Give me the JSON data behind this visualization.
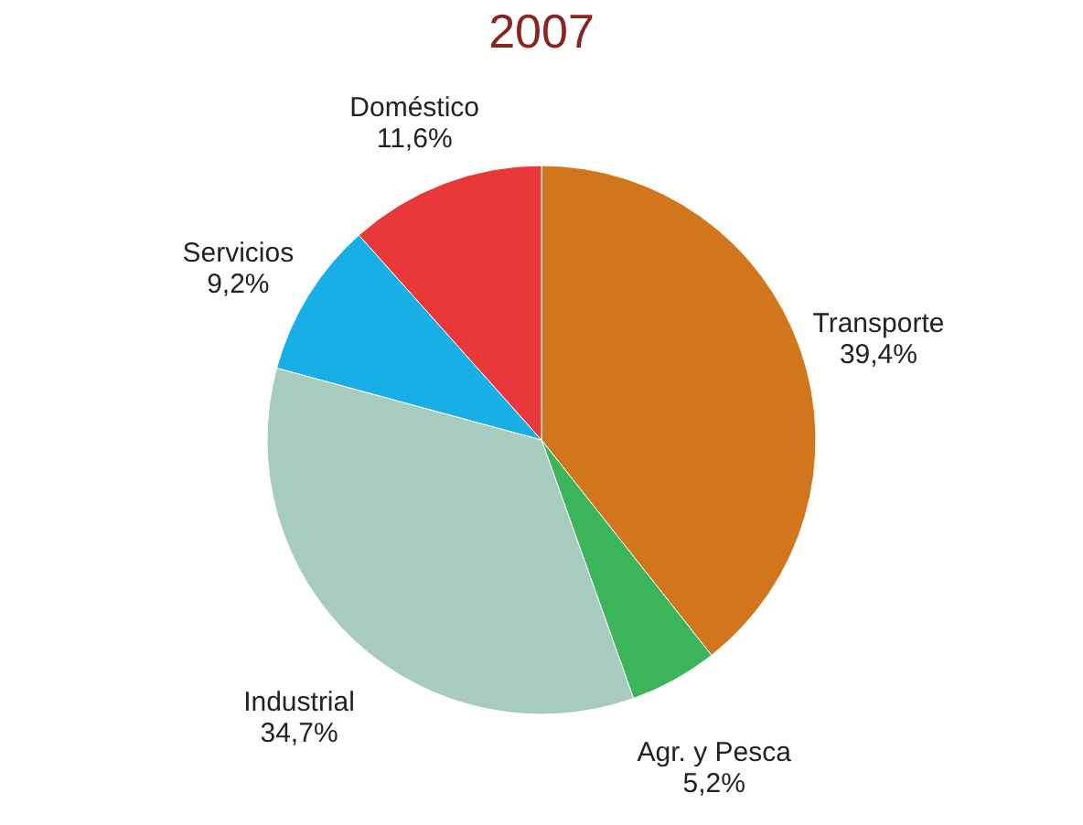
{
  "chart_data": {
    "type": "pie",
    "title": "2007",
    "categories": [
      "Transporte",
      "Agr. y Pesca",
      "Industrial",
      "Servicios",
      "Doméstico"
    ],
    "values": [
      39.4,
      5.2,
      34.7,
      9.2,
      11.6
    ],
    "value_labels": [
      "39,4%",
      "5,2%",
      "34,7%",
      "9,2%",
      "11,6%"
    ],
    "colors": [
      "#d2761e",
      "#3cb55a",
      "#a8cbbf",
      "#18aee6",
      "#e8383a"
    ],
    "legend": false
  }
}
